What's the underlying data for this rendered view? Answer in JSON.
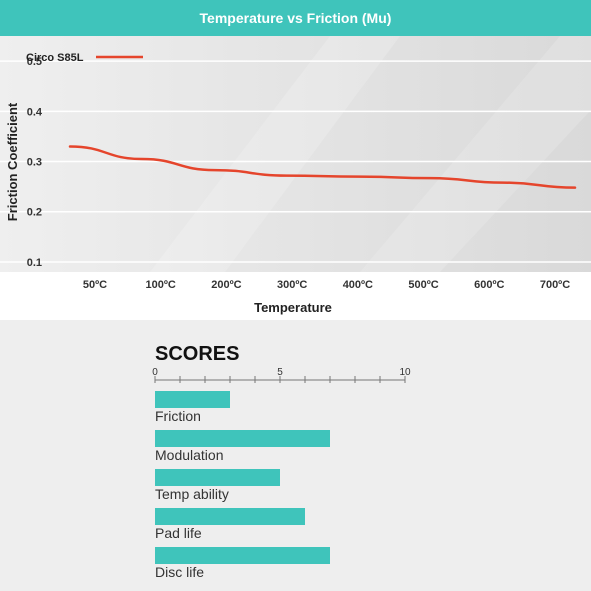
{
  "chart_data": [
    {
      "type": "line",
      "title": "Temperature vs Friction (Mu)",
      "xlabel": "Temperature",
      "ylabel": "Friction Coefficient",
      "x": [
        "50ºC",
        "100ºC",
        "200ºC",
        "300ºC",
        "400ºC",
        "500ºC",
        "600ºC",
        "700ºC"
      ],
      "yticks": [
        "0.1",
        "0.2",
        "0.3",
        "0.4",
        "0.5"
      ],
      "ylim": [
        0.08,
        0.55
      ],
      "legend_position": "top-left",
      "series": [
        {
          "name": "Circo S85L",
          "color": "#e5452c",
          "values": [
            0.33,
            0.305,
            0.283,
            0.272,
            0.27,
            0.267,
            0.258,
            0.248
          ]
        }
      ]
    },
    {
      "type": "bar",
      "orientation": "horizontal",
      "title": "SCORES",
      "xticks": [
        "0",
        "5",
        "10"
      ],
      "xlim": [
        0,
        10
      ],
      "color": "#3fc4bb",
      "categories": [
        "Friction",
        "Modulation",
        "Temp ability",
        "Pad life",
        "Disc life"
      ],
      "values": [
        3,
        7,
        5,
        6,
        7
      ]
    }
  ]
}
